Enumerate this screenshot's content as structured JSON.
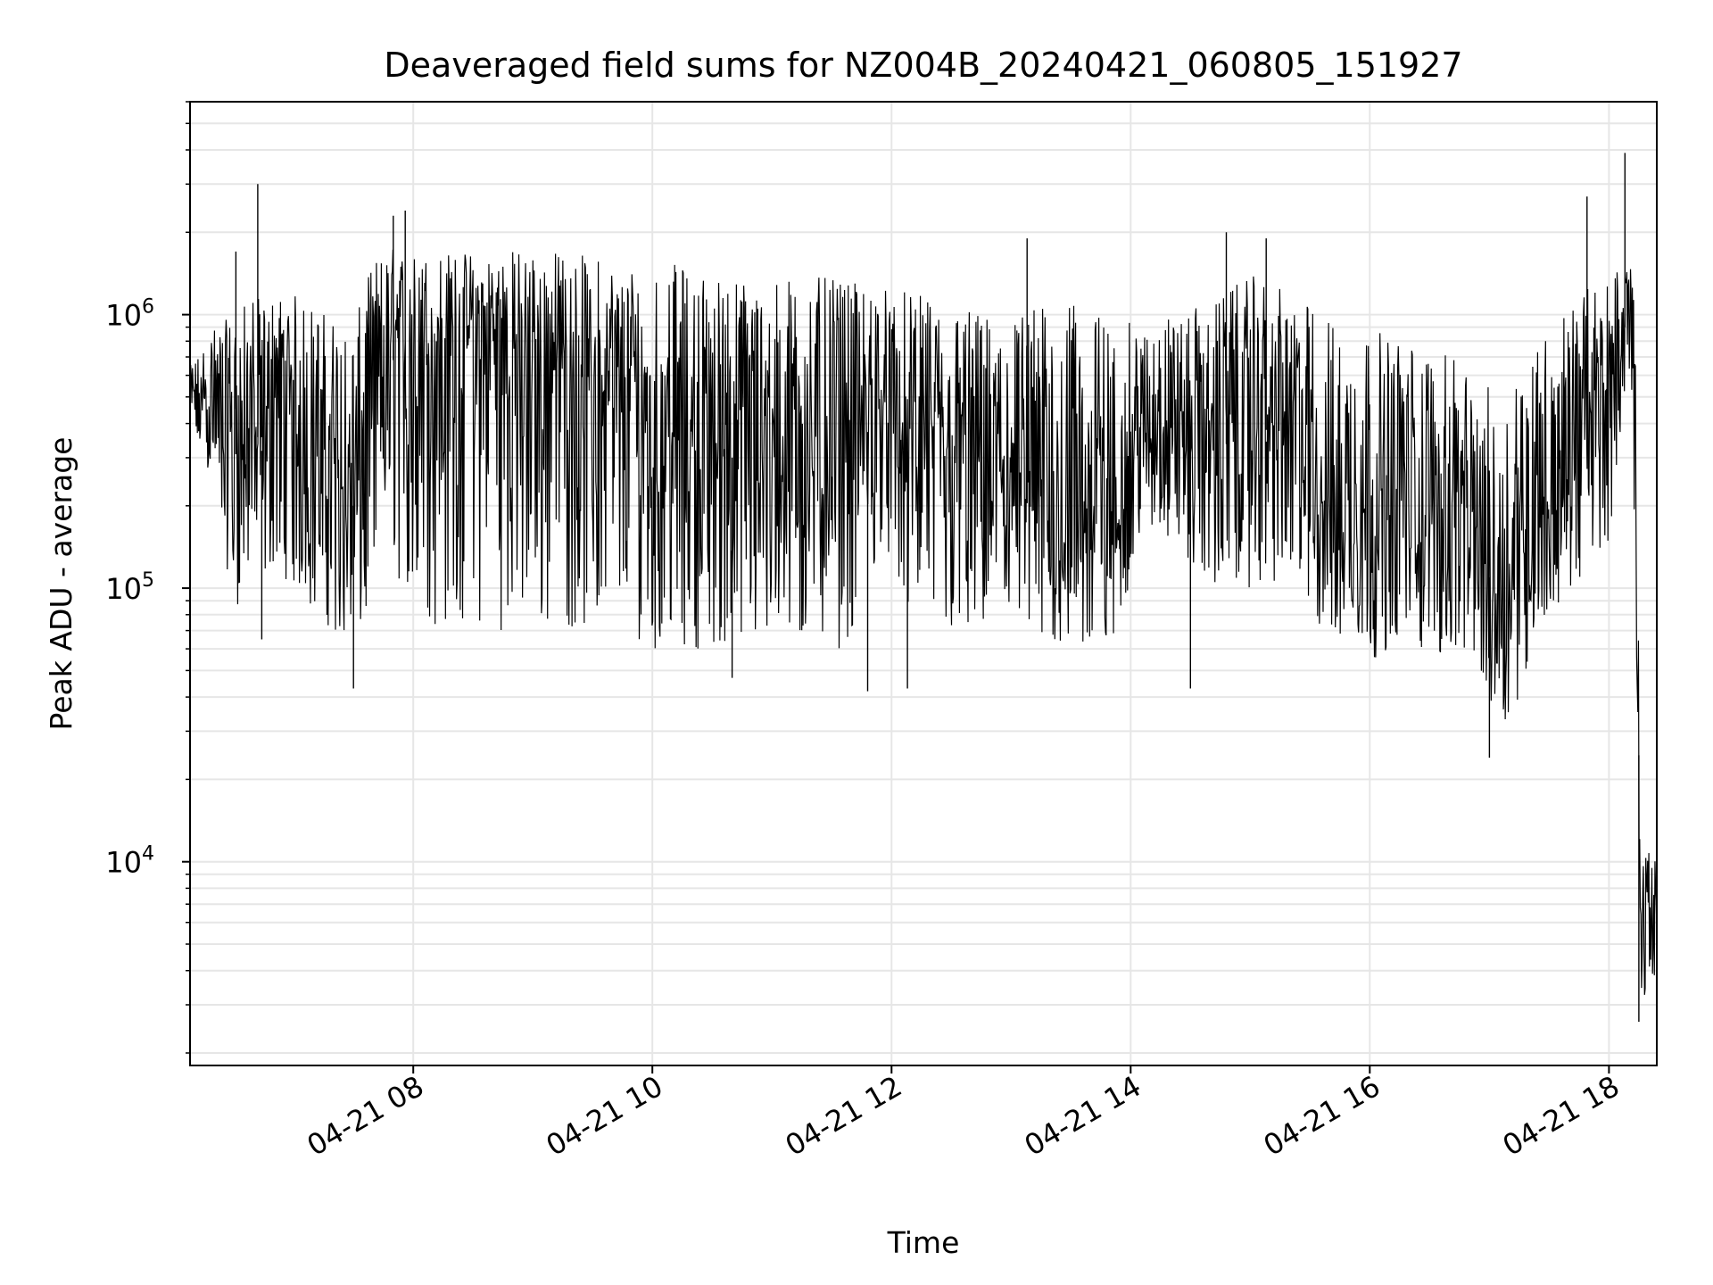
{
  "chart_data": {
    "type": "line",
    "title": "Deaveraged field sums for NZ004B_20240421_060805_151927",
    "xlabel": "Time",
    "ylabel": "Peak ADU - average",
    "x_range": [
      "2024-04-21 06:08",
      "2024-04-21 18:24"
    ],
    "ylim": [
      1800,
      6000000
    ],
    "yscale": "log",
    "grid": true,
    "line_color": "#000000",
    "grid_color": "#e6e6e6",
    "x_ticks": [
      {
        "time": "2024-04-21 08:00",
        "label": "04-21 08"
      },
      {
        "time": "2024-04-21 10:00",
        "label": "04-21 10"
      },
      {
        "time": "2024-04-21 12:00",
        "label": "04-21 12"
      },
      {
        "time": "2024-04-21 14:00",
        "label": "04-21 14"
      },
      {
        "time": "2024-04-21 16:00",
        "label": "04-21 16"
      },
      {
        "time": "2024-04-21 18:00",
        "label": "04-21 18"
      }
    ],
    "y_ticks": [
      {
        "value": 10000,
        "base": "10",
        "exp": "4"
      },
      {
        "value": 100000,
        "base": "10",
        "exp": "5"
      },
      {
        "value": 1000000,
        "base": "10",
        "exp": "6"
      }
    ],
    "series": [
      {
        "x": [
          "2024-04-21 06:08",
          "2024-04-21 06:20",
          "2024-04-21 06:30",
          "2024-04-21 06:40",
          "2024-04-21 06:45",
          "2024-04-21 06:50",
          "2024-04-21 07:00",
          "2024-04-21 07:10",
          "2024-04-21 07:20",
          "2024-04-21 07:30",
          "2024-04-21 07:40",
          "2024-04-21 07:48",
          "2024-04-21 08:00",
          "2024-04-21 08:10",
          "2024-04-21 08:20",
          "2024-04-21 08:40",
          "2024-04-21 09:00",
          "2024-04-21 09:20",
          "2024-04-21 09:40",
          "2024-04-21 10:00",
          "2024-04-21 10:20",
          "2024-04-21 10:40",
          "2024-04-21 11:00",
          "2024-04-21 11:20",
          "2024-04-21 11:40",
          "2024-04-21 11:55",
          "2024-04-21 12:10",
          "2024-04-21 12:30",
          "2024-04-21 12:50",
          "2024-04-21 13:10",
          "2024-04-21 13:30",
          "2024-04-21 13:50",
          "2024-04-21 14:05",
          "2024-04-21 14:20",
          "2024-04-21 14:40",
          "2024-04-21 15:00",
          "2024-04-21 15:20",
          "2024-04-21 15:40",
          "2024-04-21 16:00",
          "2024-04-21 16:20",
          "2024-04-21 16:40",
          "2024-04-21 16:55",
          "2024-04-21 17:05",
          "2024-04-21 17:15",
          "2024-04-21 17:30",
          "2024-04-21 17:45",
          "2024-04-21 18:00",
          "2024-04-21 18:08",
          "2024-04-21 18:12",
          "2024-04-21 18:14",
          "2024-04-21 18:16",
          "2024-04-21 18:20",
          "2024-04-21 18:24"
        ],
        "center": [
          500000,
          450000,
          300000,
          400000,
          300000,
          450000,
          350000,
          300000,
          250000,
          200000,
          400000,
          700000,
          600000,
          650000,
          700000,
          750000,
          650000,
          600000,
          450000,
          350000,
          350000,
          300000,
          300000,
          350000,
          300000,
          450000,
          300000,
          250000,
          250000,
          200000,
          200000,
          150000,
          350000,
          400000,
          300000,
          400000,
          350000,
          200000,
          150000,
          200000,
          180000,
          150000,
          80000,
          150000,
          200000,
          350000,
          500000,
          900000,
          800000,
          120000,
          5000,
          6000,
          7000
        ],
        "low": [
          350000,
          250000,
          80000,
          120000,
          100000,
          120000,
          100000,
          80000,
          70000,
          50000,
          90000,
          150000,
          60000,
          70000,
          70000,
          70000,
          70000,
          70000,
          70000,
          60000,
          60000,
          60000,
          60000,
          60000,
          60000,
          150000,
          70000,
          65000,
          65000,
          60000,
          60000,
          55000,
          150000,
          150000,
          100000,
          100000,
          100000,
          60000,
          55000,
          60000,
          55000,
          50000,
          30000,
          40000,
          80000,
          100000,
          150000,
          500000,
          400000,
          30000,
          3000,
          3500,
          4000
        ],
        "high": [
          650000,
          900000,
          1000000,
          1200000,
          1100000,
          1200000,
          1200000,
          1100000,
          1000000,
          900000,
          1600000,
          1800000,
          1700000,
          1750000,
          1700000,
          1750000,
          1750000,
          1700000,
          1600000,
          1600000,
          1500000,
          1400000,
          1400000,
          1400000,
          1300000,
          1300000,
          1200000,
          1100000,
          1000000,
          1100000,
          1100000,
          1000000,
          900000,
          1000000,
          1100000,
          1400000,
          1200000,
          1000000,
          900000,
          800000,
          700000,
          600000,
          500000,
          700000,
          900000,
          1200000,
          1400000,
          1600000,
          1500000,
          400000,
          10000,
          11000,
          10000
        ],
        "spikes": [
          {
            "time": "2024-04-21 06:31",
            "value": 1700000
          },
          {
            "time": "2024-04-21 06:42",
            "value": 3000000
          },
          {
            "time": "2024-04-21 06:44",
            "value": 65000
          },
          {
            "time": "2024-04-21 07:30",
            "value": 43000
          },
          {
            "time": "2024-04-21 07:50",
            "value": 2300000
          },
          {
            "time": "2024-04-21 07:56",
            "value": 2400000
          },
          {
            "time": "2024-04-21 10:40",
            "value": 47000
          },
          {
            "time": "2024-04-21 11:48",
            "value": 42000
          },
          {
            "time": "2024-04-21 12:08",
            "value": 43000
          },
          {
            "time": "2024-04-21 13:08",
            "value": 1900000
          },
          {
            "time": "2024-04-21 14:30",
            "value": 43000
          },
          {
            "time": "2024-04-21 14:48",
            "value": 2000000
          },
          {
            "time": "2024-04-21 15:08",
            "value": 1900000
          },
          {
            "time": "2024-04-21 17:00",
            "value": 24000
          },
          {
            "time": "2024-04-21 17:49",
            "value": 2700000
          },
          {
            "time": "2024-04-21 18:08",
            "value": 3900000
          },
          {
            "time": "2024-04-21 18:15",
            "value": 2600
          }
        ]
      }
    ]
  }
}
